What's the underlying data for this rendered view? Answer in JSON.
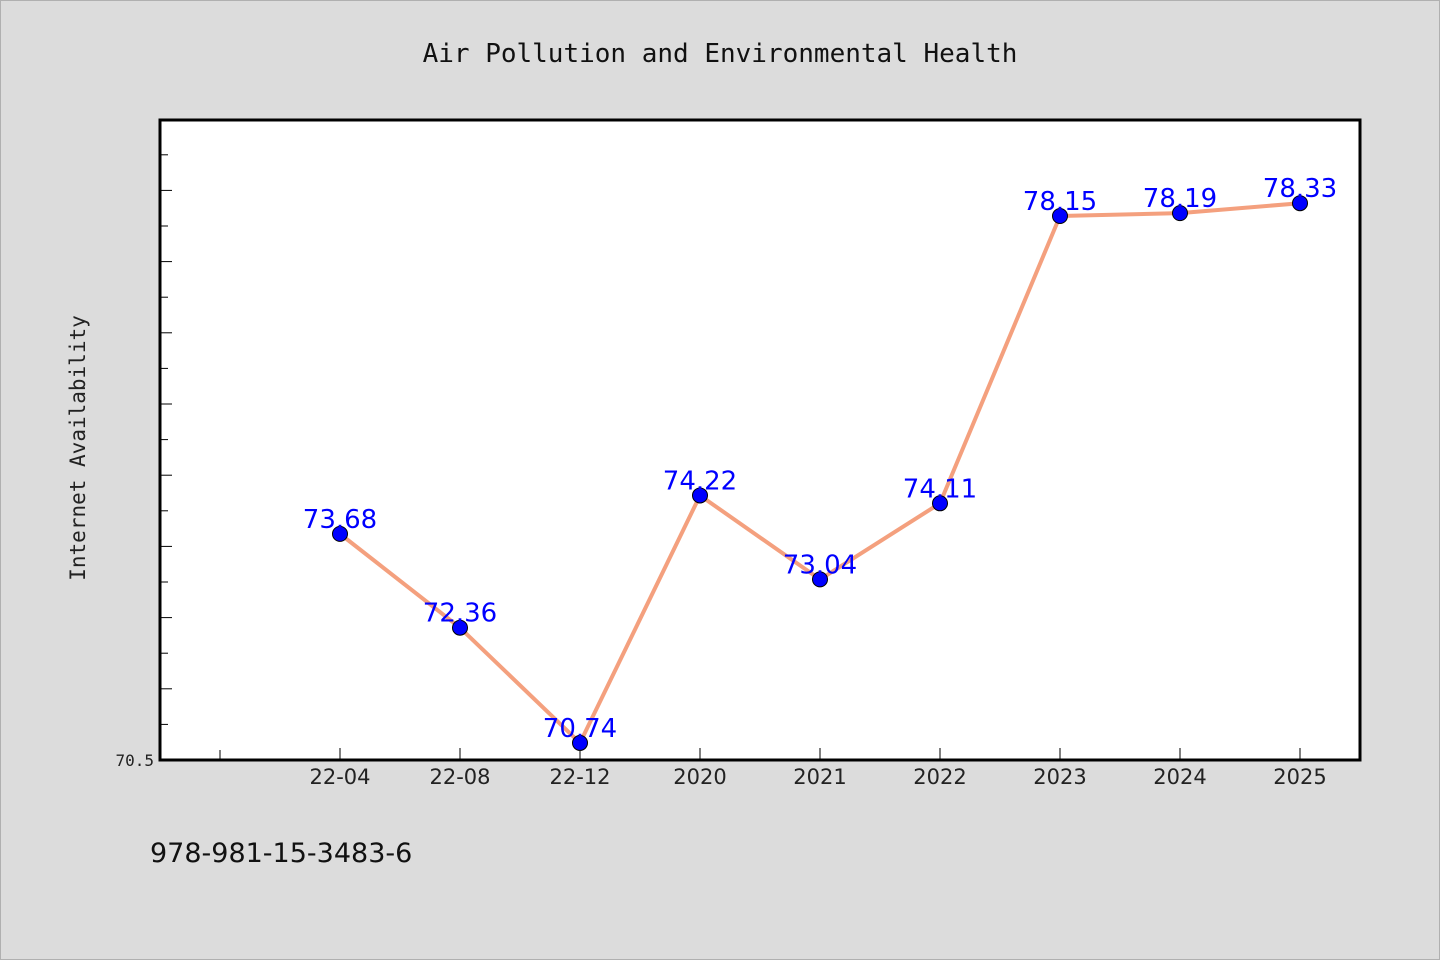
{
  "chart_data": {
    "type": "line",
    "title": "Air Pollution and Environmental Health",
    "ylabel": "Internet Availability",
    "xlabel": "",
    "categories": [
      "22-04",
      "22-08",
      "22-12",
      "2020",
      "2021",
      "2022",
      "2023",
      "2024",
      "2025"
    ],
    "series": [
      {
        "values": [
          73.68,
          72.36,
          70.74,
          74.22,
          73.04,
          74.11,
          78.15,
          78.19,
          78.33
        ]
      }
    ],
    "data_labels": [
      "73.68",
      "72.36",
      "70.74",
      "74.22",
      "73.04",
      "74.11",
      "78.15",
      "78.19",
      "78.33"
    ],
    "y_tick_labels": [
      {
        "value": 70.5,
        "label": "70.5"
      }
    ],
    "ylim": [
      70.5,
      79.5
    ],
    "grid": false,
    "line_color": "#f4a07e",
    "marker_color": "#0000ff",
    "label_color": "#0000ff"
  },
  "footnote": "978-981-15-3483-6"
}
